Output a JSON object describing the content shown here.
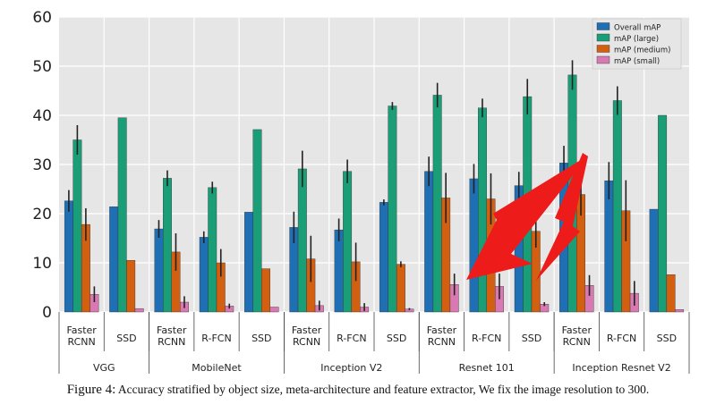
{
  "chart_data": {
    "type": "bar",
    "title": "",
    "xlabel": "",
    "ylabel": "",
    "ylim": [
      0,
      60
    ],
    "yticks": [
      0,
      10,
      20,
      30,
      40,
      50,
      60
    ],
    "grid": true,
    "legend_position": "top-right",
    "groups": [
      {
        "name": "VGG",
        "architectures": [
          "Faster RCNN",
          "SSD"
        ]
      },
      {
        "name": "MobileNet",
        "architectures": [
          "Faster RCNN",
          "R-FCN",
          "SSD"
        ]
      },
      {
        "name": "Inception V2",
        "architectures": [
          "Faster RCNN",
          "R-FCN",
          "SSD"
        ]
      },
      {
        "name": "Resnet 101",
        "architectures": [
          "Faster RCNN",
          "R-FCN",
          "SSD"
        ]
      },
      {
        "name": "Inception Resnet V2",
        "architectures": [
          "Faster RCNN",
          "R-FCN",
          "SSD"
        ]
      }
    ],
    "categories": [
      "Faster RCNN",
      "SSD",
      "Faster RCNN",
      "R-FCN",
      "SSD",
      "Faster RCNN",
      "R-FCN",
      "SSD",
      "Faster RCNN",
      "R-FCN",
      "SSD",
      "Faster RCNN",
      "R-FCN",
      "SSD"
    ],
    "series": [
      {
        "name": "Overall mAP",
        "color": "#1f6fb4",
        "values": [
          22.6,
          21.4,
          16.9,
          15.2,
          20.3,
          17.2,
          16.7,
          22.3,
          28.6,
          27.1,
          25.7,
          30.3,
          26.7,
          20.9
        ],
        "errors": [
          2.2,
          0,
          1.8,
          1.2,
          0,
          3.2,
          2.3,
          0.6,
          3.0,
          3.0,
          2.8,
          3.5,
          3.8,
          0
        ]
      },
      {
        "name": "mAP (large)",
        "color": "#1a9e77",
        "values": [
          35.0,
          39.5,
          27.2,
          25.3,
          37.1,
          29.1,
          28.6,
          41.9,
          44.1,
          41.5,
          43.8,
          48.2,
          43.0,
          40.0
        ],
        "errors": [
          3.0,
          0,
          1.6,
          1.2,
          0,
          3.7,
          2.4,
          0.8,
          2.5,
          1.9,
          3.6,
          3.0,
          2.9,
          0
        ]
      },
      {
        "name": "mAP (medium)",
        "color": "#d35f10",
        "values": [
          17.8,
          10.5,
          12.2,
          10.0,
          8.8,
          10.8,
          10.2,
          9.7,
          23.2,
          23.0,
          16.4,
          23.9,
          20.6,
          7.6
        ],
        "errors": [
          3.3,
          0,
          3.8,
          2.8,
          0,
          4.7,
          3.9,
          0.6,
          5.1,
          5.2,
          3.3,
          4.3,
          6.2,
          0
        ]
      },
      {
        "name": "mAP (small)",
        "color": "#d879b2",
        "values": [
          3.6,
          0.7,
          2.0,
          1.2,
          1.0,
          1.3,
          1.0,
          0.6,
          5.6,
          5.2,
          1.6,
          5.4,
          3.8,
          0.5
        ],
        "errors": [
          1.6,
          0,
          1.2,
          0.5,
          0,
          1.0,
          0.8,
          0.2,
          2.2,
          2.6,
          0.4,
          2.1,
          2.5,
          0
        ]
      }
    ]
  },
  "caption": {
    "label": "Figure 4:",
    "text": "Accuracy stratified by object size, meta-architecture and feature extractor, We fix the image resolution to 300."
  }
}
